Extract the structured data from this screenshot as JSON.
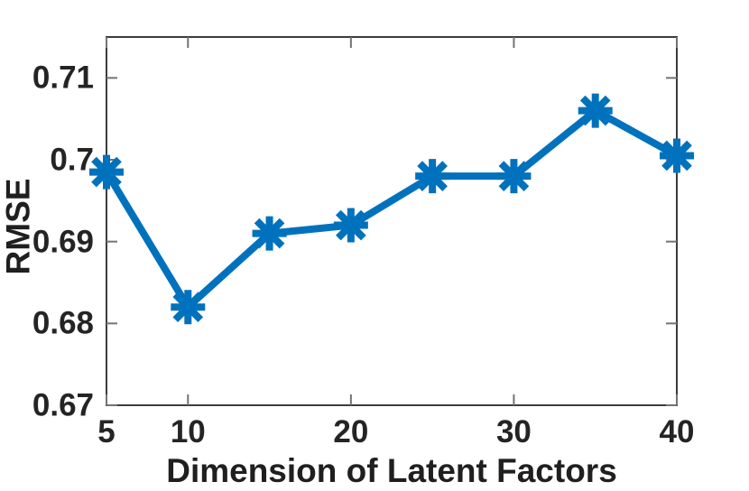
{
  "chart_data": {
    "type": "line",
    "title": "",
    "xlabel": "Dimension of Latent Factors",
    "ylabel": "RMSE",
    "x": [
      5,
      10,
      15,
      20,
      25,
      30,
      35,
      40
    ],
    "series": [
      {
        "name": "RMSE",
        "values": [
          0.6985,
          0.682,
          0.691,
          0.692,
          0.698,
          0.698,
          0.706,
          0.7005
        ]
      }
    ],
    "xlim": [
      5,
      40
    ],
    "ylim": [
      0.67,
      0.715
    ],
    "xticks": [
      5,
      10,
      20,
      30,
      40
    ],
    "xtick_labels": [
      "5",
      "10",
      "20",
      "30",
      "40"
    ],
    "yticks": [
      0.67,
      0.68,
      0.69,
      0.7,
      0.71
    ],
    "ytick_labels": [
      "0.67",
      "0.68",
      "0.69",
      "0.7",
      "0.71"
    ],
    "grid": false,
    "legend_position": "none",
    "marker": "asterisk",
    "colors": {
      "line": "#0072BD",
      "spine": "#3c3c3c",
      "tick": "#737373",
      "tick_text": "#242424",
      "label_text": "#1f1f1f",
      "background": "#ffffff"
    }
  }
}
